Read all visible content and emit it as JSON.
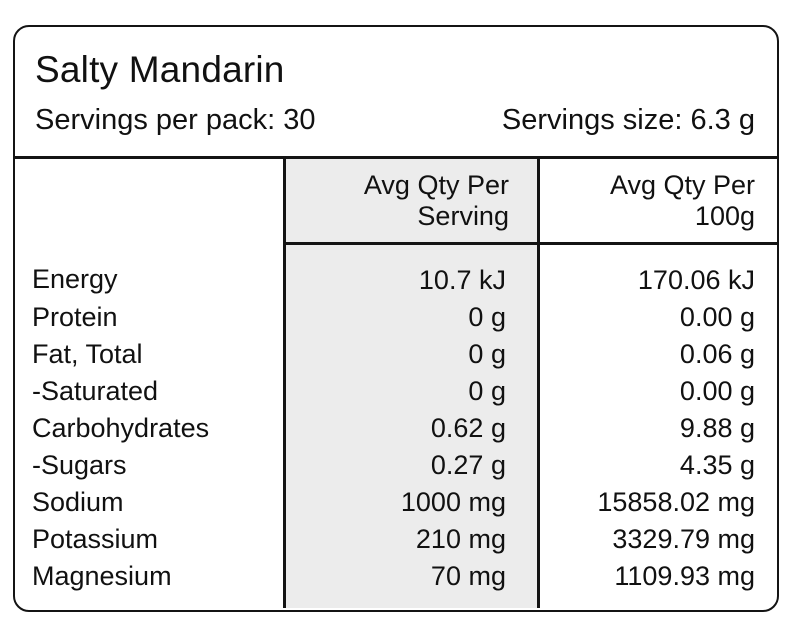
{
  "colors": {
    "border": "#141414",
    "text": "#111111",
    "shaded_column_bg": "#ececec",
    "background": "#ffffff"
  },
  "header": {
    "title": "Salty Mandarin",
    "servings_per_pack": "Servings per pack: 30",
    "serving_size": "Servings size: 6.3 g"
  },
  "table": {
    "col_serving": {
      "line1": "Avg Qty Per",
      "line2": "Serving"
    },
    "col_100g": {
      "line1": "Avg Qty Per",
      "line2": "100g"
    },
    "rows": [
      {
        "label": "Energy",
        "per_serving": "10.7 kJ",
        "per_100g": "170.06 kJ"
      },
      {
        "label": "Protein",
        "per_serving": "0 g",
        "per_100g": "0.00 g"
      },
      {
        "label": "Fat, Total",
        "per_serving": "0 g",
        "per_100g": "0.06 g"
      },
      {
        "label": "-Saturated",
        "per_serving": "0 g",
        "per_100g": "0.00 g"
      },
      {
        "label": "Carbohydrates",
        "per_serving": "0.62 g",
        "per_100g": "9.88 g"
      },
      {
        "label": "-Sugars",
        "per_serving": "0.27 g",
        "per_100g": "4.35 g"
      },
      {
        "label": "Sodium",
        "per_serving": "1000 mg",
        "per_100g": "15858.02 mg"
      },
      {
        "label": "Potassium",
        "per_serving": "210 mg",
        "per_100g": "3329.79 mg"
      },
      {
        "label": "Magnesium",
        "per_serving": "70 mg",
        "per_100g": "1109.93 mg"
      }
    ]
  }
}
